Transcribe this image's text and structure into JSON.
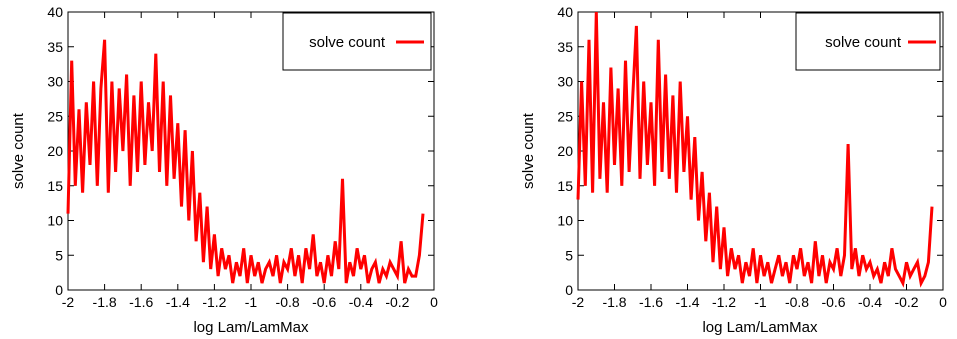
{
  "chart_data": [
    {
      "type": "line",
      "xlabel": "log Lam/LamMax",
      "ylabel": "solve count",
      "xlim": [
        -2,
        0
      ],
      "ylim": [
        0,
        40
      ],
      "xticks": [
        "-2",
        "-1.8",
        "-1.6",
        "-1.4",
        "-1.2",
        "-1",
        "-0.8",
        "-0.6",
        "-0.4",
        "-0.2",
        "0"
      ],
      "yticks": [
        "0",
        "5",
        "10",
        "15",
        "20",
        "25",
        "30",
        "35",
        "40"
      ],
      "grid": false,
      "legend": "top-right",
      "color": "#ff0000",
      "series": [
        {
          "name": "solve count",
          "x": [
            -2.0,
            -1.98,
            -1.96,
            -1.94,
            -1.92,
            -1.9,
            -1.88,
            -1.86,
            -1.84,
            -1.82,
            -1.8,
            -1.78,
            -1.76,
            -1.74,
            -1.72,
            -1.7,
            -1.68,
            -1.66,
            -1.64,
            -1.62,
            -1.6,
            -1.58,
            -1.56,
            -1.54,
            -1.52,
            -1.5,
            -1.48,
            -1.46,
            -1.44,
            -1.42,
            -1.4,
            -1.38,
            -1.36,
            -1.34,
            -1.32,
            -1.3,
            -1.28,
            -1.26,
            -1.24,
            -1.22,
            -1.2,
            -1.18,
            -1.16,
            -1.14,
            -1.12,
            -1.1,
            -1.08,
            -1.06,
            -1.04,
            -1.02,
            -1.0,
            -0.98,
            -0.96,
            -0.94,
            -0.92,
            -0.9,
            -0.88,
            -0.86,
            -0.84,
            -0.82,
            -0.8,
            -0.78,
            -0.76,
            -0.74,
            -0.72,
            -0.7,
            -0.68,
            -0.66,
            -0.64,
            -0.62,
            -0.6,
            -0.58,
            -0.56,
            -0.54,
            -0.52,
            -0.5,
            -0.48,
            -0.46,
            -0.44,
            -0.42,
            -0.4,
            -0.38,
            -0.36,
            -0.34,
            -0.32,
            -0.3,
            -0.28,
            -0.26,
            -0.24,
            -0.22,
            -0.2,
            -0.18,
            -0.16,
            -0.14,
            -0.12,
            -0.1,
            -0.08,
            -0.06
          ],
          "y": [
            11,
            33,
            15,
            26,
            14,
            27,
            18,
            30,
            15,
            29,
            36,
            14,
            30,
            17,
            29,
            20,
            31,
            15,
            28,
            17,
            30,
            18,
            27,
            20,
            34,
            17,
            30,
            15,
            28,
            16,
            24,
            12,
            23,
            10,
            20,
            7,
            14,
            4,
            12,
            3,
            8,
            2,
            6,
            3,
            5,
            1,
            4,
            2,
            6,
            1,
            5,
            2,
            4,
            1,
            3,
            4,
            2,
            5,
            1,
            4,
            3,
            6,
            2,
            5,
            1,
            6,
            3,
            8,
            2,
            4,
            1,
            5,
            2,
            7,
            3,
            16,
            1,
            4,
            2,
            6,
            3,
            5,
            1,
            3,
            4,
            1,
            3,
            2,
            4,
            3,
            2,
            7,
            1,
            3,
            2,
            2,
            5,
            11
          ]
        }
      ]
    },
    {
      "type": "line",
      "xlabel": "log Lam/LamMax",
      "ylabel": "solve count",
      "xlim": [
        -2,
        0
      ],
      "ylim": [
        0,
        40
      ],
      "xticks": [
        "-2",
        "-1.8",
        "-1.6",
        "-1.4",
        "-1.2",
        "-1",
        "-0.8",
        "-0.6",
        "-0.4",
        "-0.2",
        "0"
      ],
      "yticks": [
        "0",
        "5",
        "10",
        "15",
        "20",
        "25",
        "30",
        "35",
        "40"
      ],
      "grid": false,
      "legend": "top-right",
      "color": "#ff0000",
      "series": [
        {
          "name": "solve count",
          "x": [
            -2.0,
            -1.98,
            -1.96,
            -1.94,
            -1.92,
            -1.9,
            -1.88,
            -1.86,
            -1.84,
            -1.82,
            -1.8,
            -1.78,
            -1.76,
            -1.74,
            -1.72,
            -1.7,
            -1.68,
            -1.66,
            -1.64,
            -1.62,
            -1.6,
            -1.58,
            -1.56,
            -1.54,
            -1.52,
            -1.5,
            -1.48,
            -1.46,
            -1.44,
            -1.42,
            -1.4,
            -1.38,
            -1.36,
            -1.34,
            -1.32,
            -1.3,
            -1.28,
            -1.26,
            -1.24,
            -1.22,
            -1.2,
            -1.18,
            -1.16,
            -1.14,
            -1.12,
            -1.1,
            -1.08,
            -1.06,
            -1.04,
            -1.02,
            -1.0,
            -0.98,
            -0.96,
            -0.94,
            -0.92,
            -0.9,
            -0.88,
            -0.86,
            -0.84,
            -0.82,
            -0.8,
            -0.78,
            -0.76,
            -0.74,
            -0.72,
            -0.7,
            -0.68,
            -0.66,
            -0.64,
            -0.62,
            -0.6,
            -0.58,
            -0.56,
            -0.54,
            -0.52,
            -0.5,
            -0.48,
            -0.46,
            -0.44,
            -0.42,
            -0.4,
            -0.38,
            -0.36,
            -0.34,
            -0.32,
            -0.3,
            -0.28,
            -0.26,
            -0.24,
            -0.22,
            -0.2,
            -0.18,
            -0.16,
            -0.14,
            -0.12,
            -0.1,
            -0.08,
            -0.06
          ],
          "y": [
            13,
            30,
            15,
            36,
            14,
            40,
            16,
            27,
            14,
            32,
            18,
            29,
            15,
            33,
            17,
            28,
            38,
            16,
            30,
            18,
            27,
            15,
            36,
            17,
            31,
            16,
            28,
            14,
            30,
            17,
            25,
            13,
            22,
            10,
            17,
            7,
            14,
            4,
            12,
            3,
            9,
            2,
            6,
            3,
            5,
            1,
            4,
            2,
            6,
            1,
            5,
            2,
            4,
            1,
            3,
            5,
            2,
            4,
            1,
            5,
            3,
            6,
            2,
            4,
            1,
            7,
            2,
            5,
            1,
            4,
            3,
            6,
            2,
            5,
            21,
            3,
            6,
            2,
            5,
            3,
            4,
            2,
            3,
            1,
            4,
            2,
            6,
            3,
            2,
            1,
            4,
            2,
            3,
            4,
            1,
            2,
            4,
            12
          ]
        }
      ]
    }
  ]
}
